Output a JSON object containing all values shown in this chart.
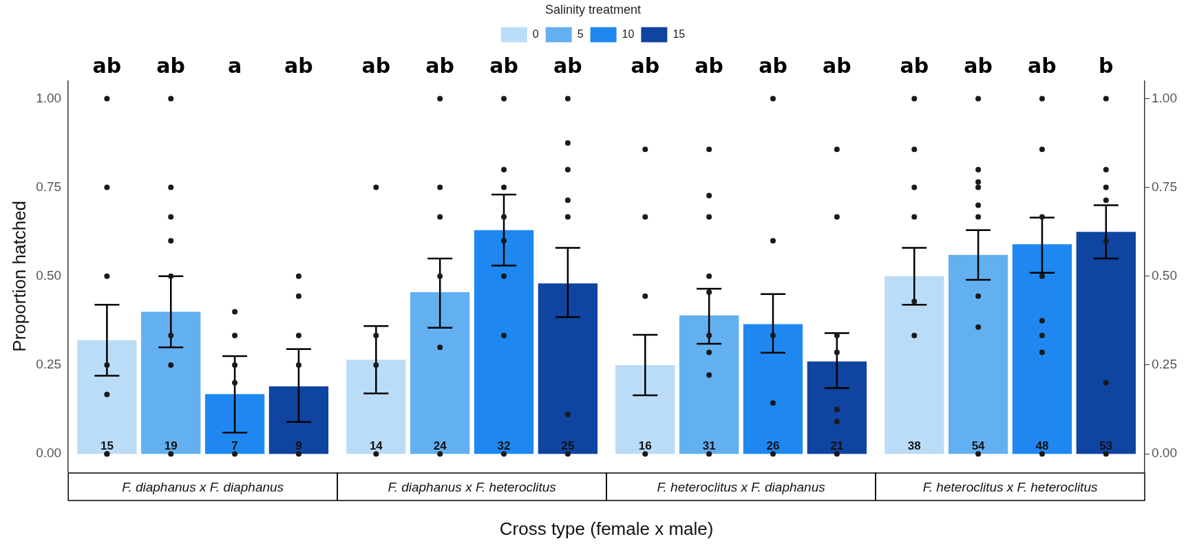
{
  "chart_data": {
    "type": "bar",
    "xlabel": "Cross type (female x male)",
    "ylabel": "Proportion hatched",
    "legend_title": "Salinity treatment",
    "legend": "top",
    "grid": false,
    "categories": [
      "F. diaphanus x F. diaphanus",
      "F. diaphanus x F. heteroclitus",
      "F. heteroclitus x F. diaphanus",
      "F. heteroclitus x F. heteroclitus"
    ],
    "ylim": [
      -0.05,
      1.05
    ],
    "yticks": [
      {
        "value": 0,
        "label": "0.00"
      },
      {
        "value": 0.25,
        "label": "0.25"
      },
      {
        "value": 0.5,
        "label": "0.50"
      },
      {
        "value": 0.75,
        "label": "0.75"
      },
      {
        "value": 1,
        "label": "1.00"
      }
    ],
    "y2lim": [
      -0.05,
      1.05
    ],
    "y2ticks": [
      {
        "value": 0,
        "label": "0.00"
      },
      {
        "value": 0.25,
        "label": "0.25"
      },
      {
        "value": 0.5,
        "label": "0.50"
      },
      {
        "value": 0.75,
        "label": "0.75"
      },
      {
        "value": 1,
        "label": "1.00"
      }
    ],
    "series": [
      {
        "name": "0",
        "color": "#bbdcf7",
        "values": [
          0.32,
          0.265,
          0.25,
          0.5
        ],
        "errors": [
          [
            0.22,
            0.42
          ],
          [
            0.17,
            0.36
          ],
          [
            0.165,
            0.335
          ],
          [
            0.42,
            0.58
          ]
        ]
      },
      {
        "name": "5",
        "color": "#63b0f1",
        "values": [
          0.4,
          0.455,
          0.39,
          0.56
        ],
        "errors": [
          [
            0.3,
            0.5
          ],
          [
            0.355,
            0.55
          ],
          [
            0.31,
            0.465
          ],
          [
            0.49,
            0.63
          ]
        ]
      },
      {
        "name": "10",
        "color": "#1f88f0",
        "values": [
          0.168,
          0.63,
          0.365,
          0.59
        ],
        "errors": [
          [
            0.06,
            0.275
          ],
          [
            0.53,
            0.73
          ],
          [
            0.285,
            0.45
          ],
          [
            0.51,
            0.665
          ]
        ]
      },
      {
        "name": "15",
        "color": "#0f44a0",
        "values": [
          0.19,
          0.48,
          0.26,
          0.625
        ],
        "errors": [
          [
            0.09,
            0.295
          ],
          [
            0.385,
            0.58
          ],
          [
            0.185,
            0.34
          ],
          [
            0.55,
            0.7
          ]
        ]
      },
      {
        "type": "scatter",
        "color": "#1a1a1a",
        "x": [
          "F. diaphanus x F. diaphanus",
          "F. diaphanus x F. diaphanus",
          "F. diaphanus x F. diaphanus",
          "F. diaphanus x F. diaphanus",
          "F. diaphanus x F. diaphanus",
          "F. diaphanus x F. diaphanus",
          "F. diaphanus x F. diaphanus",
          "F. diaphanus x F. heteroclitus",
          "F. diaphanus x F. heteroclitus",
          "F. diaphanus x F. heteroclitus",
          "F. diaphanus x F. heteroclitus",
          "F. heteroclitus x F. diaphanus",
          "F. heteroclitus x F. diaphanus",
          "F. heteroclitus x F. diaphanus",
          "F. heteroclitus x F. diaphanus",
          "F. heteroclitus x F. heteroclitus",
          "F. heteroclitus x F. heteroclitus",
          "F. heteroclitus x F. heteroclitus",
          "F. heteroclitus x F. heteroclitus",
          "F. heteroclitus x F. heteroclitus",
          "F. heteroclitus x F. heteroclitus"
        ],
        "values": [
          1,
          0.75,
          0.5,
          0.25,
          0.167,
          0,
          0,
          0.75,
          0.333,
          0.25,
          0,
          0.857,
          0.667,
          0.444,
          0,
          1,
          0.857,
          0.75,
          0.667,
          0.429,
          0.333
        ]
      },
      {
        "type": "scatter",
        "color": "#1a1a1a",
        "x": [
          "F. diaphanus x F. diaphanus",
          "F. diaphanus x F. diaphanus",
          "F. diaphanus x F. diaphanus",
          "F. diaphanus x F. diaphanus",
          "F. diaphanus x F. diaphanus",
          "F. diaphanus x F. diaphanus",
          "F. diaphanus x F. diaphanus",
          "F. diaphanus x F. diaphanus",
          "F. diaphanus x F. heteroclitus",
          "F. diaphanus x F. heteroclitus",
          "F. diaphanus x F. heteroclitus",
          "F. diaphanus x F. heteroclitus",
          "F. diaphanus x F. heteroclitus",
          "F. diaphanus x F. heteroclitus",
          "F. heteroclitus x F. diaphanus",
          "F. heteroclitus x F. diaphanus",
          "F. heteroclitus x F. diaphanus",
          "F. heteroclitus x F. diaphanus",
          "F. heteroclitus x F. diaphanus",
          "F. heteroclitus x F. diaphanus",
          "F. heteroclitus x F. diaphanus",
          "F. heteroclitus x F. diaphanus",
          "F. heteroclitus x F. diaphanus",
          "F. heteroclitus x F. heteroclitus",
          "F. heteroclitus x F. heteroclitus",
          "F. heteroclitus x F. heteroclitus",
          "F. heteroclitus x F. heteroclitus",
          "F. heteroclitus x F. heteroclitus",
          "F. heteroclitus x F. heteroclitus",
          "F. heteroclitus x F. heteroclitus",
          "F. heteroclitus x F. heteroclitus",
          "F. heteroclitus x F. heteroclitus"
        ],
        "values": [
          1,
          0.75,
          0.667,
          0.6,
          0.5,
          0.333,
          0.25,
          0,
          1,
          0.75,
          0.667,
          0.5,
          0.3,
          0,
          0.857,
          0.727,
          0.667,
          0.5,
          0.455,
          0.333,
          0.286,
          0.222,
          0,
          1,
          0.8,
          0.765,
          0.75,
          0.7,
          0.667,
          0.444,
          0.357,
          0
        ]
      },
      {
        "type": "scatter",
        "color": "#1a1a1a",
        "x": [
          "F. diaphanus x F. diaphanus",
          "F. diaphanus x F. diaphanus",
          "F. diaphanus x F. diaphanus",
          "F. diaphanus x F. diaphanus",
          "F. diaphanus x F. diaphanus",
          "F. diaphanus x F. heteroclitus",
          "F. diaphanus x F. heteroclitus",
          "F. diaphanus x F. heteroclitus",
          "F. diaphanus x F. heteroclitus",
          "F. diaphanus x F. heteroclitus",
          "F. diaphanus x F. heteroclitus",
          "F. diaphanus x F. heteroclitus",
          "F. diaphanus x F. heteroclitus",
          "F. heteroclitus x F. diaphanus",
          "F. heteroclitus x F. diaphanus",
          "F. heteroclitus x F. diaphanus",
          "F. heteroclitus x F. diaphanus",
          "F. heteroclitus x F. diaphanus",
          "F. heteroclitus x F. heteroclitus",
          "F. heteroclitus x F. heteroclitus",
          "F. heteroclitus x F. heteroclitus",
          "F. heteroclitus x F. heteroclitus",
          "F. heteroclitus x F. heteroclitus",
          "F. heteroclitus x F. heteroclitus",
          "F. heteroclitus x F. heteroclitus",
          "F. heteroclitus x F. heteroclitus"
        ],
        "values": [
          0.4,
          0.333,
          0.25,
          0.2,
          0,
          1,
          0.8,
          0.75,
          0.667,
          0.6,
          0.5,
          0.333,
          0,
          1,
          0.6,
          0.333,
          0.143,
          0,
          1,
          0.857,
          0.667,
          0.5,
          0.375,
          0.333,
          0.286,
          0
        ]
      },
      {
        "type": "scatter",
        "color": "#1a1a1a",
        "x": [
          "F. diaphanus x F. diaphanus",
          "F. diaphanus x F. diaphanus",
          "F. diaphanus x F. diaphanus",
          "F. diaphanus x F. diaphanus",
          "F. diaphanus x F. diaphanus",
          "F. diaphanus x F. heteroclitus",
          "F. diaphanus x F. heteroclitus",
          "F. diaphanus x F. heteroclitus",
          "F. diaphanus x F. heteroclitus",
          "F. diaphanus x F. heteroclitus",
          "F. diaphanus x F. heteroclitus",
          "F. diaphanus x F. heteroclitus",
          "F. heteroclitus x F. diaphanus",
          "F. heteroclitus x F. diaphanus",
          "F. heteroclitus x F. diaphanus",
          "F. heteroclitus x F. diaphanus",
          "F. heteroclitus x F. diaphanus",
          "F. heteroclitus x F. diaphanus",
          "F. heteroclitus x F. diaphanus",
          "F. heteroclitus x F. heteroclitus",
          "F. heteroclitus x F. heteroclitus",
          "F. heteroclitus x F. heteroclitus",
          "F. heteroclitus x F. heteroclitus",
          "F. heteroclitus x F. heteroclitus",
          "F. heteroclitus x F. heteroclitus",
          "F. heteroclitus x F. heteroclitus"
        ],
        "values": [
          0.5,
          0.444,
          0.333,
          0.25,
          0,
          1,
          0.875,
          0.8,
          0.714,
          0.667,
          0.111,
          0,
          0.857,
          0.667,
          0.333,
          0.286,
          0.125,
          0.091,
          0,
          1,
          0.8,
          0.75,
          0.714,
          0.6,
          0.2,
          0
        ]
      }
    ],
    "annotations": [
      "ab",
      "ab",
      "a",
      "ab",
      "ab",
      "ab",
      "ab",
      "ab",
      "ab",
      "ab",
      "ab",
      "ab",
      "ab",
      "ab",
      "ab",
      "b",
      "15",
      "19",
      "7",
      "9",
      "14",
      "24",
      "32",
      "25",
      "16",
      "31",
      "26",
      "21",
      "38",
      "54",
      "48",
      "53"
    ]
  }
}
